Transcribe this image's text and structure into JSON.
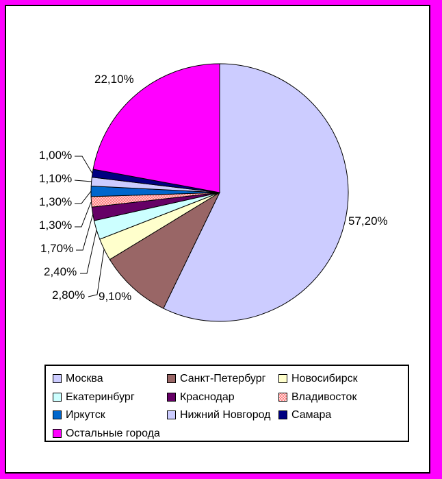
{
  "chart_data": {
    "type": "pie",
    "title": "",
    "categories": [
      "Москва",
      "Санкт-Петербург",
      "Новосибирск",
      "Екатеринбург",
      "Краснодар",
      "Владивосток",
      "Иркутск",
      "Нижний Новгород",
      "Самара",
      "Остальные города"
    ],
    "values": [
      57.2,
      9.1,
      2.8,
      2.4,
      1.7,
      1.3,
      1.3,
      1.1,
      1.0,
      22.1
    ],
    "percent_labels": [
      "57,20%",
      "9,10%",
      "2,80%",
      "2,40%",
      "1,70%",
      "1,30%",
      "1,30%",
      "1,10%",
      "1,00%",
      "22,10%"
    ],
    "colors": [
      "#CCCCFF",
      "#996666",
      "#FFFFCC",
      "#CCFFFF",
      "#660066",
      "#FF8080",
      "#0066CC",
      "#CCCCFF",
      "#000080",
      "#FF00FF"
    ],
    "patterns": {
      "Владивосток": "pink-dots"
    },
    "start_angle_deg": 0,
    "direction": "clockwise",
    "slice_border_color": "#000000",
    "plot_background": "#FFFFFF",
    "frame_color": "#FF00FF",
    "legend_position": "bottom",
    "legend_columns": 3
  }
}
